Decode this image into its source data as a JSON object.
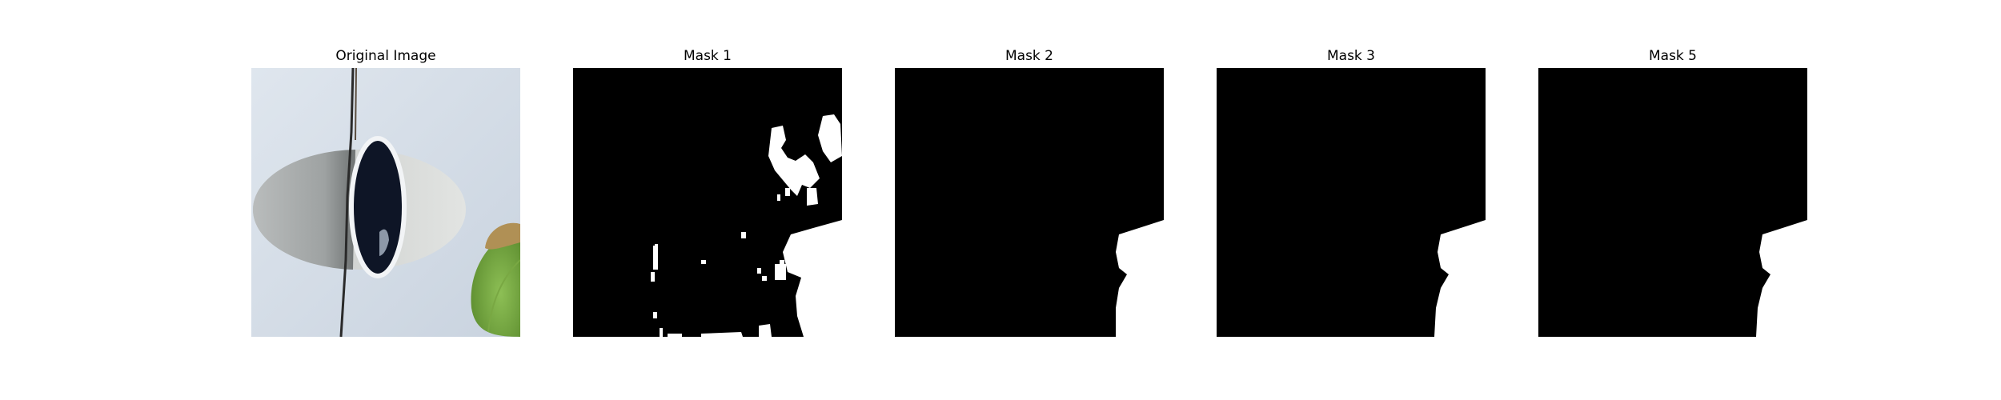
{
  "figure": {
    "panels": [
      {
        "title": "Original Image",
        "kind": "photo"
      },
      {
        "title": "Mask 1",
        "kind": "mask"
      },
      {
        "title": "Mask 2",
        "kind": "mask"
      },
      {
        "title": "Mask 3",
        "kind": "mask"
      },
      {
        "title": "Mask 5",
        "kind": "mask"
      }
    ]
  }
}
